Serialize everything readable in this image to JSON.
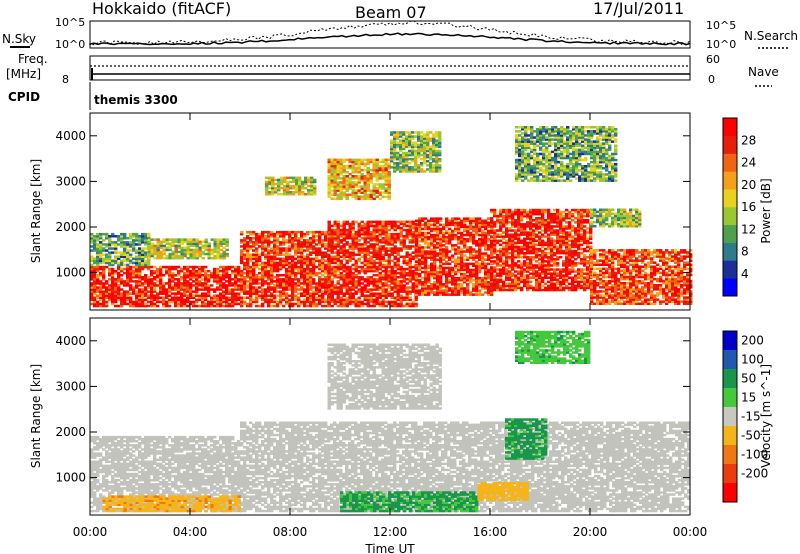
{
  "header": {
    "station": "Hokkaido (fitACF)",
    "beam": "Beam 07",
    "date": "17/Jul/2011"
  },
  "top_panels": {
    "nsky_label": "N.Sky",
    "nsearch_label": "N.Search",
    "noise_ticks": [
      "10^5",
      "10^0"
    ],
    "freq_label_1": "Freq.",
    "freq_label_2": "[MHz]",
    "freq_ticks": [
      "8"
    ],
    "nave_label": "Nave",
    "nave_ticks": [
      "60",
      "0"
    ],
    "cpid_label": "CPID",
    "cpid_value": "themis 3300"
  },
  "colors": {
    "power_scale": [
      "#0000ff",
      "#1a2f9a",
      "#2e7b8c",
      "#4fa04f",
      "#9ac832",
      "#e8d21e",
      "#f5a019",
      "#f06414",
      "#e61e0a",
      "#ff0000"
    ],
    "velocity_scale": [
      "#0000c8",
      "#1e5ab4",
      "#19964b",
      "#46c83c",
      "#c8c8be",
      "#f5b419",
      "#f07814",
      "#eb3c0f",
      "#ff0000"
    ],
    "grey": "#c3c3bd"
  },
  "chart_data": [
    {
      "type": "heatmap",
      "panel": "power",
      "ylabel": "Slant Range [km]",
      "xlabel": "Time UT",
      "x_ticks": [
        "00:00",
        "04:00",
        "08:00",
        "12:00",
        "16:00",
        "20:00",
        "00:00"
      ],
      "xlim_hours": [
        0,
        24
      ],
      "y_ticks": [
        1000,
        2000,
        3000,
        4000
      ],
      "ylim": [
        180,
        4500
      ],
      "colorbar_label": "Power [dB]",
      "colorbar_ticks": [
        28,
        24,
        20,
        16,
        12,
        8,
        4
      ],
      "colorbar_range": [
        0,
        32
      ],
      "regions": [
        {
          "t": [
            0.0,
            6.0
          ],
          "r": [
            250,
            1150
          ],
          "v": 28
        },
        {
          "t": [
            0.0,
            2.3
          ],
          "r": [
            1150,
            1850
          ],
          "v": 12
        },
        {
          "t": [
            2.3,
            5.5
          ],
          "r": [
            1300,
            1750
          ],
          "v": 16
        },
        {
          "t": [
            6.0,
            9.5
          ],
          "r": [
            250,
            1900
          ],
          "v": 27
        },
        {
          "t": [
            9.5,
            13.0
          ],
          "r": [
            250,
            2100
          ],
          "v": 28
        },
        {
          "t": [
            13.0,
            16.0
          ],
          "r": [
            500,
            2200
          ],
          "v": 27
        },
        {
          "t": [
            16.0,
            20.0
          ],
          "r": [
            600,
            2400
          ],
          "v": 28
        },
        {
          "t": [
            20.0,
            24.0
          ],
          "r": [
            300,
            1500
          ],
          "v": 26
        },
        {
          "t": [
            7.0,
            9.0
          ],
          "r": [
            2700,
            3100
          ],
          "v": 16
        },
        {
          "t": [
            9.5,
            12.0
          ],
          "r": [
            2600,
            3500
          ],
          "v": 20
        },
        {
          "t": [
            12.0,
            14.0
          ],
          "r": [
            3200,
            4100
          ],
          "v": 14
        },
        {
          "t": [
            17.0,
            21.0
          ],
          "r": [
            3000,
            4200
          ],
          "v": 12
        },
        {
          "t": [
            20.0,
            22.0
          ],
          "r": [
            2000,
            2400
          ],
          "v": 14
        }
      ]
    },
    {
      "type": "heatmap",
      "panel": "velocity",
      "ylabel": "Slant Range [km]",
      "xlabel": "Time UT",
      "x_ticks": [
        "00:00",
        "04:00",
        "08:00",
        "12:00",
        "16:00",
        "20:00",
        "00:00"
      ],
      "xlim_hours": [
        0,
        24
      ],
      "y_ticks": [
        1000,
        2000,
        3000,
        4000
      ],
      "ylim": [
        180,
        4500
      ],
      "colorbar_label": "Velocity [m s^-1]",
      "colorbar_ticks": [
        200,
        100,
        50,
        15,
        -15,
        -50,
        -100,
        -200
      ],
      "regions": [
        {
          "t": [
            0.0,
            6.0
          ],
          "r": [
            250,
            1900
          ],
          "v": 0
        },
        {
          "t": [
            6.0,
            24.0
          ],
          "r": [
            250,
            2200
          ],
          "v": 0
        },
        {
          "t": [
            9.5,
            14.0
          ],
          "r": [
            2500,
            3900
          ],
          "v": 0
        },
        {
          "t": [
            16.6,
            18.2
          ],
          "r": [
            1400,
            2300
          ],
          "v": 60
        },
        {
          "t": [
            10.0,
            15.5
          ],
          "r": [
            250,
            700
          ],
          "v": 55
        },
        {
          "t": [
            0.5,
            6.0
          ],
          "r": [
            250,
            600
          ],
          "v": -40
        },
        {
          "t": [
            15.5,
            17.5
          ],
          "r": [
            500,
            900
          ],
          "v": -30
        },
        {
          "t": [
            17.0,
            20.0
          ],
          "r": [
            3500,
            4200
          ],
          "v": 40
        }
      ]
    }
  ]
}
